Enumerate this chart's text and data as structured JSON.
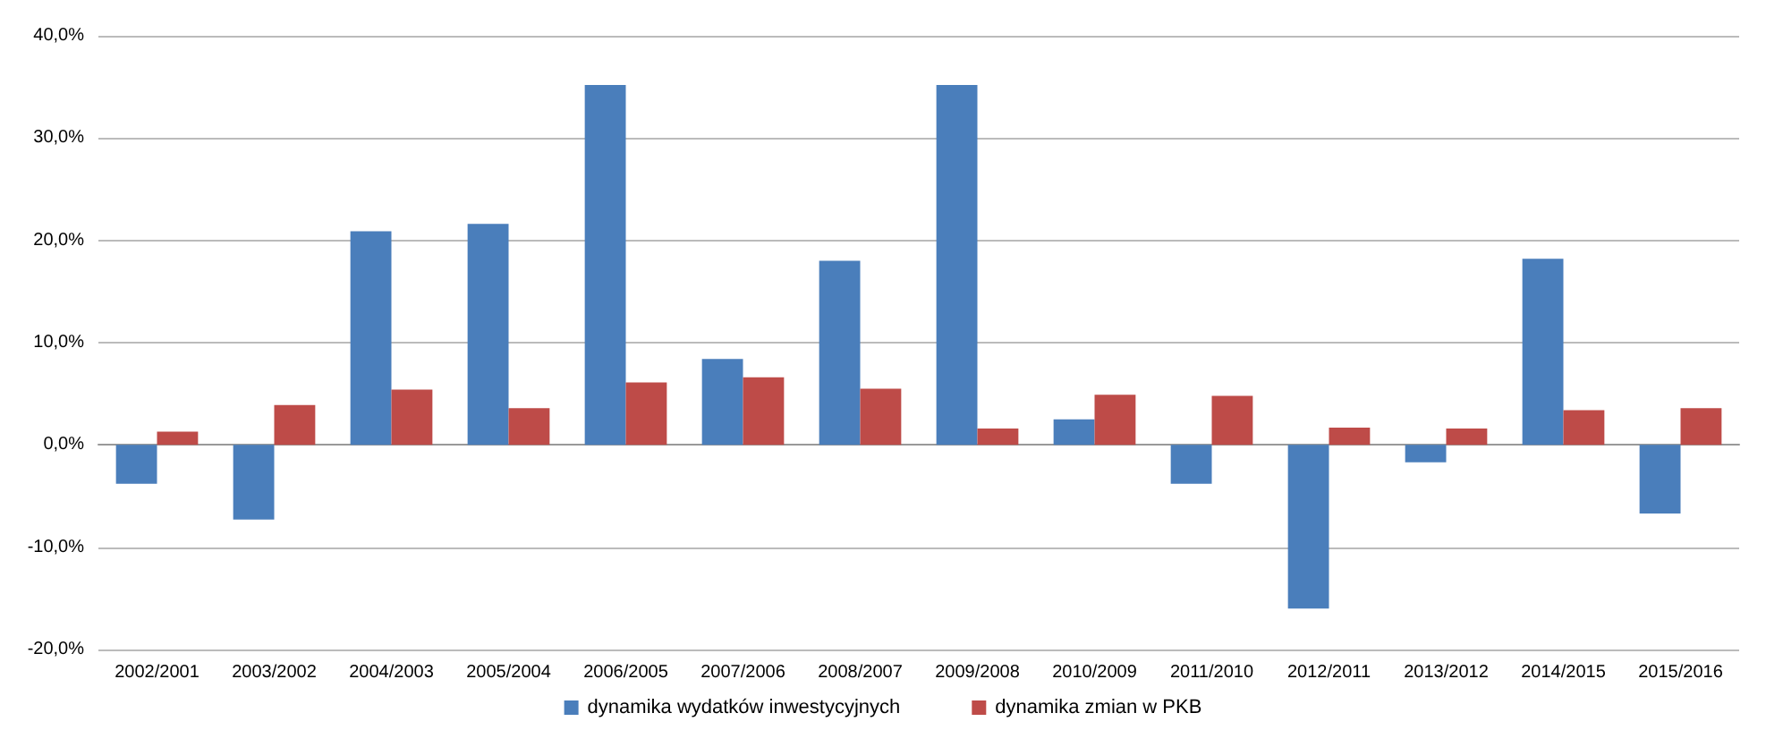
{
  "chart_data": {
    "type": "bar",
    "categories": [
      "2002/2001",
      "2003/2002",
      "2004/2003",
      "2005/2004",
      "2006/2005",
      "2007/2006",
      "2008/2007",
      "2009/2008",
      "2010/2009",
      "2011/2010",
      "2012/2011",
      "2013/2012",
      "2014/2015",
      "2015/2016"
    ],
    "series": [
      {
        "name": "dynamika wydatków inwestycyjnych",
        "color": "#4a7ebb",
        "values": [
          -3.8,
          -7.3,
          20.9,
          21.6,
          35.2,
          8.4,
          18.0,
          35.2,
          2.5,
          -3.8,
          -16.0,
          -1.7,
          18.2,
          -6.7
        ]
      },
      {
        "name": "dynamika zmian w PKB",
        "color": "#be4b48",
        "values": [
          1.3,
          3.9,
          5.4,
          3.6,
          6.1,
          6.6,
          5.5,
          1.6,
          4.9,
          4.8,
          1.7,
          1.6,
          3.4,
          3.6
        ]
      }
    ],
    "ylim": [
      -20,
      40
    ],
    "yticks": [
      {
        "value": -20,
        "label": "-20,0%"
      },
      {
        "value": -10,
        "label": "-10,0%"
      },
      {
        "value": 0,
        "label": "0,0%"
      },
      {
        "value": 10,
        "label": "10,0%"
      },
      {
        "value": 20,
        "label": "20,0%"
      },
      {
        "value": 30,
        "label": "30,0%"
      },
      {
        "value": 40,
        "label": "40,0%"
      }
    ],
    "grid": "y",
    "legend": "bottom"
  }
}
